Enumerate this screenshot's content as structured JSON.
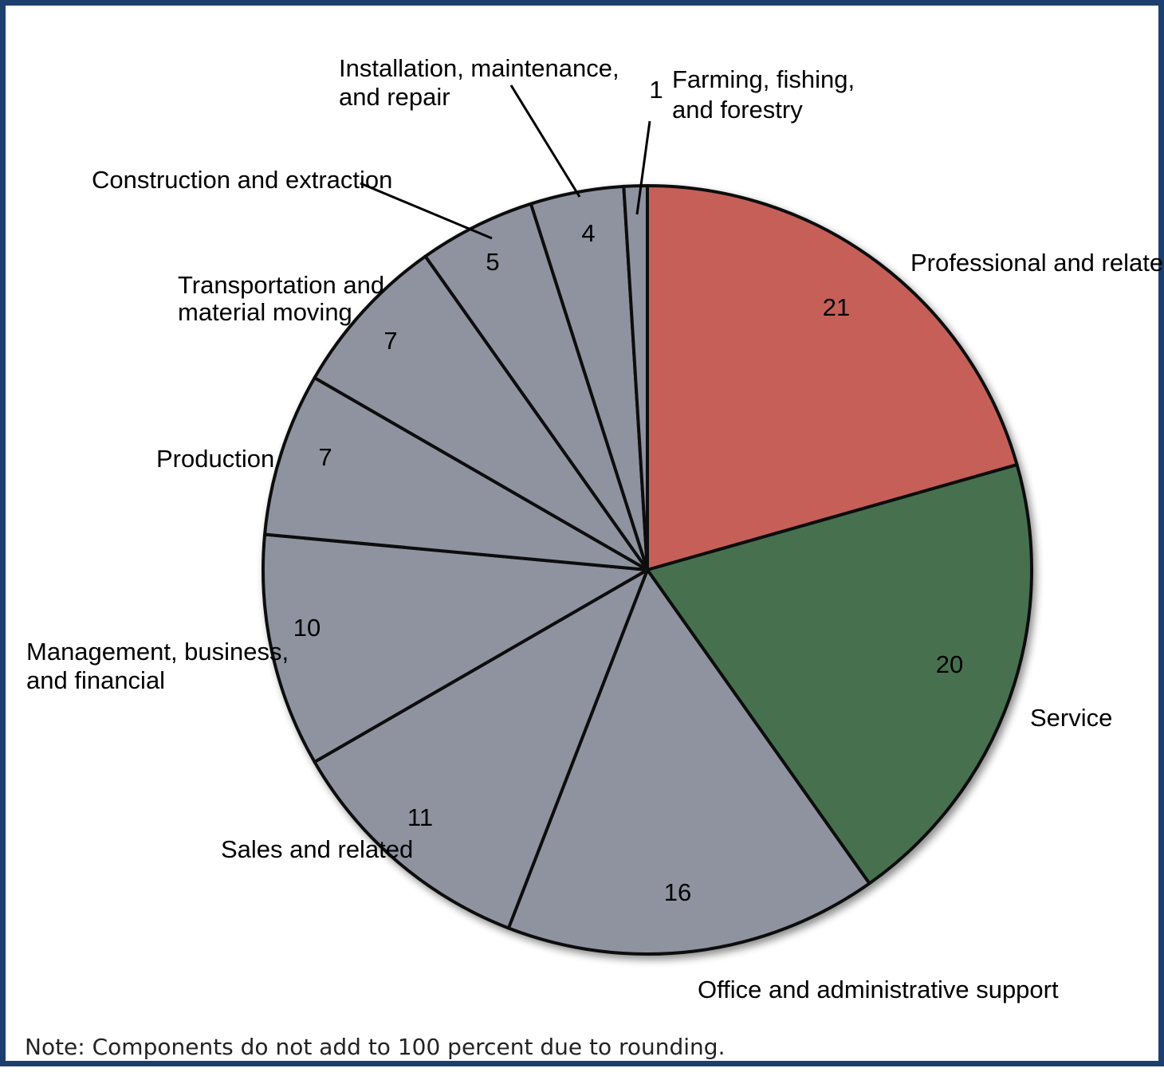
{
  "chart_data": {
    "type": "pie",
    "slices": [
      {
        "label": "Professional and related",
        "value": 21,
        "color": "#c65f58"
      },
      {
        "label": "Service",
        "value": 20,
        "color": "#46704f"
      },
      {
        "label": "Office and administrative support",
        "value": 16,
        "color": "#8f93a0"
      },
      {
        "label": "Sales and related",
        "value": 11,
        "color": "#8f93a0"
      },
      {
        "label": "Management, business, and financial",
        "value": 10,
        "color": "#8f93a0"
      },
      {
        "label": "Production",
        "value": 7,
        "color": "#8f93a0"
      },
      {
        "label": "Transportation and material moving",
        "value": 7,
        "color": "#8f93a0"
      },
      {
        "label": "Construction and extraction",
        "value": 5,
        "color": "#8f93a0"
      },
      {
        "label": "Installation, maintenance, and repair",
        "value": 4,
        "color": "#8f93a0"
      },
      {
        "label": "Farming, fishing, and forestry",
        "value": 1,
        "color": "#8f93a0"
      }
    ],
    "note": "Note: Components do not add to 100 percent due to rounding."
  }
}
